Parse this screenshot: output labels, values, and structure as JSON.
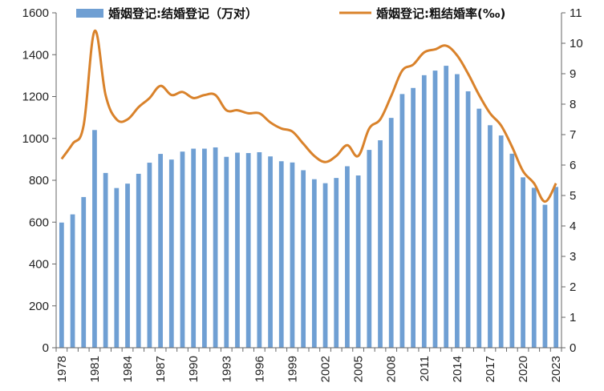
{
  "colors": {
    "bar": "#6f9fd3",
    "line": "#d9822b",
    "axis": "#666666"
  },
  "chart_data": {
    "type": "bar+line",
    "title": "",
    "legend": [
      {
        "label": "婚姻登记:结婚登记（万对）",
        "kind": "bar"
      },
      {
        "label": "婚姻登记:粗结婚率(‰)",
        "kind": "line"
      }
    ],
    "categories": [
      1978,
      1979,
      1980,
      1981,
      1982,
      1983,
      1984,
      1985,
      1986,
      1987,
      1988,
      1989,
      1990,
      1991,
      1992,
      1993,
      1994,
      1995,
      1996,
      1997,
      1998,
      1999,
      2000,
      2001,
      2002,
      2003,
      2004,
      2005,
      2006,
      2007,
      2008,
      2009,
      2010,
      2011,
      2012,
      2013,
      2014,
      2015,
      2016,
      2017,
      2018,
      2019,
      2020,
      2021,
      2022,
      2023
    ],
    "x_tick_labels": [
      "1978",
      "1981",
      "1984",
      "1987",
      "1990",
      "1993",
      "1996",
      "1999",
      "2002",
      "2005",
      "2008",
      "2011",
      "2014",
      "2017",
      "2020",
      "2023"
    ],
    "left_axis": {
      "min": 0,
      "max": 1600,
      "ticks": [
        "0",
        "200",
        "400",
        "600",
        "800",
        "1000",
        "1200",
        "1400",
        "1600"
      ]
    },
    "right_axis": {
      "min": 0,
      "max": 11,
      "ticks": [
        "0",
        "1",
        "2",
        "3",
        "4",
        "5",
        "6",
        "7",
        "8",
        "9",
        "10",
        "11"
      ]
    },
    "series": [
      {
        "name": "婚姻登记:结婚登记（万对）",
        "axis": "left",
        "type": "bar",
        "values": [
          598,
          637,
          720,
          1040,
          835,
          763,
          784,
          831,
          884,
          926,
          899,
          937,
          951,
          951,
          957,
          912,
          932,
          930,
          934,
          914,
          891,
          885,
          848,
          805,
          786,
          811,
          867,
          823,
          945,
          991,
          1098,
          1212,
          1241,
          1302,
          1324,
          1347,
          1307,
          1225,
          1142,
          1063,
          1014,
          927,
          814,
          764,
          683,
          768
        ]
      },
      {
        "name": "婚姻登记:粗结婚率(‰)",
        "axis": "right",
        "type": "line",
        "values": [
          6.2,
          6.7,
          7.3,
          10.4,
          8.3,
          7.5,
          7.5,
          7.9,
          8.2,
          8.6,
          8.3,
          8.4,
          8.2,
          8.3,
          8.3,
          7.8,
          7.8,
          7.7,
          7.7,
          7.4,
          7.2,
          7.1,
          6.7,
          6.3,
          6.1,
          6.3,
          6.65,
          6.3,
          7.2,
          7.5,
          8.27,
          9.1,
          9.3,
          9.7,
          9.8,
          9.92,
          9.6,
          9.0,
          8.3,
          7.7,
          7.3,
          6.6,
          5.8,
          5.4,
          4.8,
          5.4
        ]
      }
    ]
  }
}
